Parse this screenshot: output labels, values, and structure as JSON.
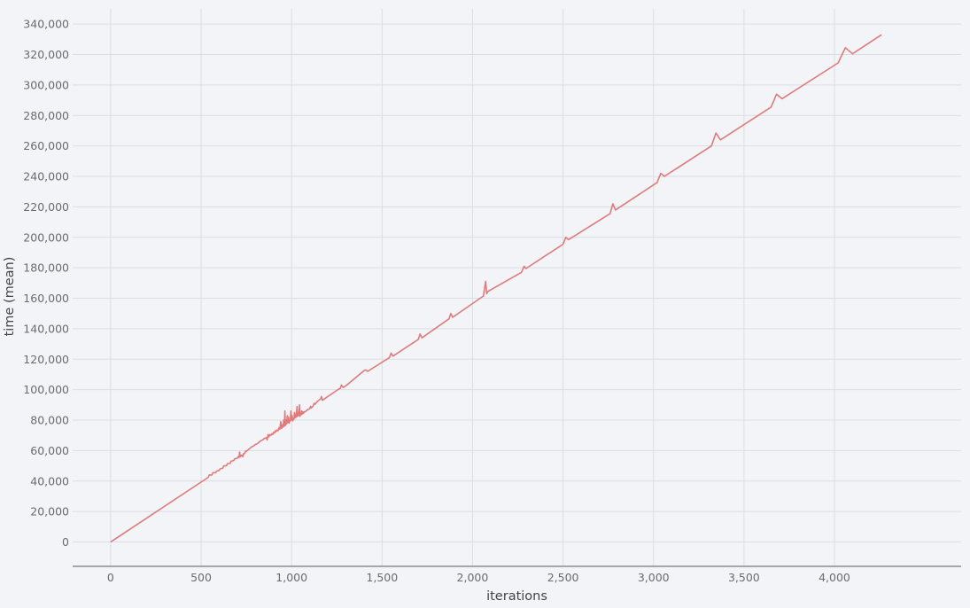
{
  "chart_data": {
    "type": "line",
    "xlabel": "iterations",
    "ylabel": "time (mean)",
    "xlim": [
      -210,
      4700
    ],
    "ylim": [
      -16000,
      350000
    ],
    "grid": true,
    "x_ticks": [
      0,
      500,
      1000,
      1500,
      2000,
      2500,
      3000,
      3500,
      4000
    ],
    "x_tick_labels": [
      "0",
      "500",
      "1,000",
      "1,500",
      "2,000",
      "2,500",
      "3,000",
      "3,500",
      "4,000"
    ],
    "y_ticks": [
      0,
      20000,
      40000,
      60000,
      80000,
      100000,
      120000,
      140000,
      160000,
      180000,
      200000,
      220000,
      240000,
      260000,
      280000,
      300000,
      320000,
      340000
    ],
    "y_tick_labels": [
      "0",
      "20,000",
      "40,000",
      "60,000",
      "80,000",
      "100,000",
      "120,000",
      "140,000",
      "160,000",
      "180,000",
      "200,000",
      "220,000",
      "240,000",
      "260,000",
      "280,000",
      "300,000",
      "320,000",
      "340,000"
    ],
    "series": [
      {
        "color": "#e07b7b",
        "x": [
          0,
          540,
          545,
          560,
          565,
          580,
          585,
          600,
          605,
          620,
          625,
          640,
          645,
          660,
          665,
          680,
          685,
          700,
          705,
          710,
          713,
          716,
          725,
          730,
          735,
          740,
          745,
          750,
          755,
          760,
          770,
          780,
          790,
          800,
          810,
          820,
          830,
          840,
          850,
          860,
          865,
          870,
          875,
          880,
          885,
          890,
          895,
          900,
          905,
          910,
          915,
          920,
          925,
          930,
          935,
          940,
          945,
          950,
          953,
          956,
          960,
          963,
          966,
          970,
          973,
          976,
          980,
          983,
          986,
          990,
          993,
          996,
          1000,
          1003,
          1006,
          1010,
          1013,
          1016,
          1020,
          1023,
          1026,
          1030,
          1033,
          1036,
          1040,
          1043,
          1046,
          1050,
          1053,
          1056,
          1060,
          1063,
          1066,
          1070,
          1075,
          1080,
          1090,
          1100,
          1105,
          1110,
          1120,
          1125,
          1130,
          1140,
          1150,
          1160,
          1165,
          1170,
          1200,
          1250,
          1270,
          1275,
          1285,
          1300,
          1400,
          1410,
          1420,
          1540,
          1550,
          1560,
          1700,
          1710,
          1720,
          1870,
          1880,
          1890,
          2060,
          2072,
          2078,
          2085,
          2270,
          2285,
          2295,
          2500,
          2515,
          2530,
          2760,
          2775,
          2790,
          3020,
          3040,
          3060,
          3320,
          3345,
          3370,
          3650,
          3680,
          3710,
          4020,
          4060,
          4100,
          4260
        ],
        "y": [
          0,
          42500,
          44000,
          44000,
          45500,
          45500,
          46500,
          47000,
          48000,
          48500,
          50000,
          50000,
          51500,
          51500,
          53000,
          53500,
          54500,
          55000,
          56000,
          55500,
          59000,
          56000,
          57000,
          56000,
          58000,
          58000,
          59500,
          59500,
          60000,
          60500,
          61500,
          62500,
          63000,
          64000,
          64500,
          65500,
          66500,
          67000,
          68000,
          68500,
          67000,
          70500,
          69000,
          70500,
          70000,
          71000,
          70500,
          72000,
          71500,
          73000,
          72500,
          73500,
          73000,
          75000,
          74000,
          79000,
          74500,
          77000,
          75500,
          80000,
          76000,
          86000,
          76500,
          80000,
          77500,
          83000,
          78500,
          82000,
          78000,
          80000,
          79500,
          86000,
          80000,
          83000,
          79500,
          81000,
          80500,
          85000,
          81500,
          84000,
          82000,
          89000,
          82500,
          85000,
          83000,
          90000,
          82500,
          85000,
          83500,
          86000,
          84000,
          85500,
          84500,
          85500,
          85500,
          86000,
          87000,
          87500,
          89000,
          88000,
          89500,
          91000,
          90500,
          92000,
          93000,
          94000,
          95500,
          93000,
          95500,
          99500,
          101000,
          103000,
          101500,
          102500,
          112500,
          113000,
          112000,
          121000,
          124000,
          122000,
          133000,
          136500,
          134000,
          146500,
          150000,
          147500,
          161500,
          171000,
          163000,
          164500,
          177000,
          181000,
          179500,
          195500,
          200000,
          198500,
          215500,
          222000,
          218000,
          236000,
          242000,
          240000,
          260000,
          268500,
          264000,
          285500,
          294000,
          291000,
          314500,
          324500,
          320500,
          333000
        ]
      }
    ]
  }
}
